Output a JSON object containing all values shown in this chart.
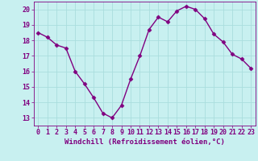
{
  "x": [
    0,
    1,
    2,
    3,
    4,
    5,
    6,
    7,
    8,
    9,
    10,
    11,
    12,
    13,
    14,
    15,
    16,
    17,
    18,
    19,
    20,
    21,
    22,
    23
  ],
  "y": [
    18.5,
    18.2,
    17.7,
    17.5,
    16.0,
    15.2,
    14.3,
    13.3,
    13.0,
    13.8,
    15.5,
    17.0,
    18.7,
    19.5,
    19.2,
    19.9,
    20.2,
    20.0,
    19.4,
    18.4,
    17.9,
    17.1,
    16.8,
    16.2
  ],
  "line_color": "#800080",
  "marker": "D",
  "marker_size": 2.5,
  "bg_color": "#c8f0f0",
  "grid_color": "#aadddd",
  "xlabel": "Windchill (Refroidissement éolien,°C)",
  "xlim": [
    -0.5,
    23.5
  ],
  "ylim": [
    12.5,
    20.5
  ],
  "yticks": [
    13,
    14,
    15,
    16,
    17,
    18,
    19,
    20
  ],
  "xticks": [
    0,
    1,
    2,
    3,
    4,
    5,
    6,
    7,
    8,
    9,
    10,
    11,
    12,
    13,
    14,
    15,
    16,
    17,
    18,
    19,
    20,
    21,
    22,
    23
  ],
  "xlabel_fontsize": 6.5,
  "tick_fontsize": 6.0,
  "line_width": 1.0
}
